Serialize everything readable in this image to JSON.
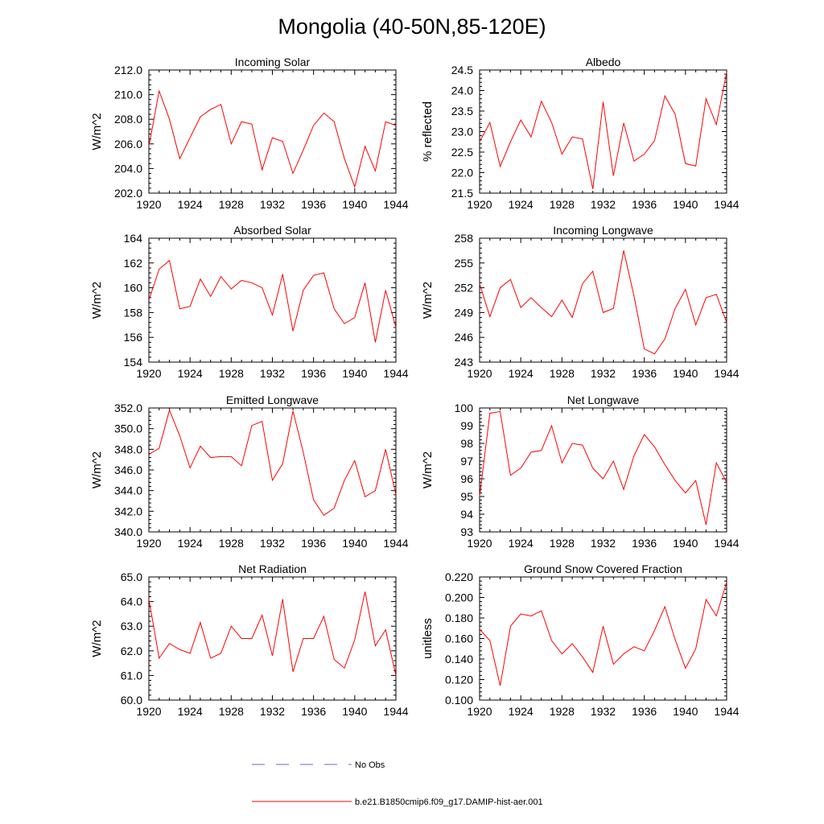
{
  "title": "Mongolia (40-50N,85-120E)",
  "legend": {
    "obs_label": "No Obs",
    "obs_color": "#6a6ad0",
    "model_label": "b.e21.B1850cmip6.f09_g17.DAMIP-hist-aer.001",
    "model_color": "#ff0000"
  },
  "chart_data": [
    {
      "type": "line",
      "title": "Incoming Solar",
      "ylabel": "W/m^2",
      "xlim": [
        1920,
        1944
      ],
      "ylim": [
        202,
        212
      ],
      "xticks": [
        "1920",
        "1924",
        "1928",
        "1932",
        "1936",
        "1940",
        "1944"
      ],
      "yticks": [
        "202.0",
        "204.0",
        "206.0",
        "208.0",
        "210.0",
        "212.0"
      ],
      "x": [
        1920,
        1921,
        1922,
        1923,
        1924,
        1925,
        1926,
        1927,
        1928,
        1929,
        1930,
        1931,
        1932,
        1933,
        1934,
        1935,
        1936,
        1937,
        1938,
        1939,
        1940,
        1941,
        1942,
        1943,
        1944
      ],
      "series": [
        {
          "values": [
            205.8,
            210.3,
            208.0,
            204.8,
            206.5,
            208.2,
            208.8,
            209.2,
            206.0,
            207.8,
            207.6,
            203.9,
            206.5,
            206.2,
            203.6,
            205.5,
            207.5,
            208.5,
            207.8,
            204.8,
            202.5,
            205.8,
            203.8,
            207.8,
            207.5
          ]
        }
      ]
    },
    {
      "type": "line",
      "title": "Albedo",
      "ylabel": "% reflected",
      "xlim": [
        1920,
        1944
      ],
      "ylim": [
        21.5,
        24.5
      ],
      "xticks": [
        "1920",
        "1924",
        "1928",
        "1932",
        "1936",
        "1940",
        "1944"
      ],
      "yticks": [
        "21.5",
        "22.0",
        "22.5",
        "23.0",
        "23.5",
        "24.0",
        "24.5"
      ],
      "x": [
        1920,
        1921,
        1922,
        1923,
        1924,
        1925,
        1926,
        1927,
        1928,
        1929,
        1930,
        1931,
        1932,
        1933,
        1934,
        1935,
        1936,
        1937,
        1938,
        1939,
        1940,
        1941,
        1942,
        1943,
        1944
      ],
      "series": [
        {
          "values": [
            22.75,
            23.22,
            22.15,
            22.75,
            23.28,
            22.87,
            23.74,
            23.22,
            22.45,
            22.87,
            22.82,
            21.6,
            23.72,
            21.92,
            23.21,
            22.28,
            22.45,
            22.78,
            23.87,
            23.42,
            22.22,
            22.16,
            23.8,
            23.17,
            24.45
          ]
        }
      ]
    },
    {
      "type": "line",
      "title": "Absorbed Solar",
      "ylabel": "W/m^2",
      "xlim": [
        1920,
        1944
      ],
      "ylim": [
        154,
        164
      ],
      "xticks": [
        "1920",
        "1924",
        "1928",
        "1932",
        "1936",
        "1940",
        "1944"
      ],
      "yticks": [
        "154",
        "156",
        "158",
        "160",
        "162",
        "164"
      ],
      "x": [
        1920,
        1921,
        1922,
        1923,
        1924,
        1925,
        1926,
        1927,
        1928,
        1929,
        1930,
        1931,
        1932,
        1933,
        1934,
        1935,
        1936,
        1937,
        1938,
        1939,
        1940,
        1941,
        1942,
        1943,
        1944
      ],
      "series": [
        {
          "values": [
            159.0,
            161.5,
            162.2,
            158.3,
            158.5,
            160.7,
            159.3,
            160.9,
            159.9,
            160.6,
            160.4,
            160.0,
            157.8,
            161.1,
            156.5,
            159.8,
            161.0,
            161.2,
            158.3,
            157.1,
            157.6,
            160.4,
            155.6,
            159.8,
            156.8
          ]
        }
      ]
    },
    {
      "type": "line",
      "title": "Incoming Longwave",
      "ylabel": "W/m^2",
      "xlim": [
        1920,
        1944
      ],
      "ylim": [
        243,
        258
      ],
      "xticks": [
        "1920",
        "1924",
        "1928",
        "1932",
        "1936",
        "1940",
        "1944"
      ],
      "yticks": [
        "243",
        "246",
        "249",
        "252",
        "255",
        "258"
      ],
      "x": [
        1920,
        1921,
        1922,
        1923,
        1924,
        1925,
        1926,
        1927,
        1928,
        1929,
        1930,
        1931,
        1932,
        1933,
        1934,
        1935,
        1936,
        1937,
        1938,
        1939,
        1940,
        1941,
        1942,
        1943,
        1944
      ],
      "series": [
        {
          "values": [
            252.5,
            248.5,
            252.0,
            253.0,
            249.6,
            250.8,
            249.6,
            248.5,
            250.5,
            248.4,
            252.5,
            254.0,
            249.0,
            249.5,
            256.5,
            251.0,
            244.6,
            244.0,
            245.8,
            249.5,
            251.8,
            247.5,
            250.8,
            251.2,
            247.8
          ]
        }
      ]
    },
    {
      "type": "line",
      "title": "Emitted Longwave",
      "ylabel": "W/m^2",
      "xlim": [
        1920,
        1944
      ],
      "ylim": [
        340,
        352
      ],
      "xticks": [
        "1920",
        "1924",
        "1928",
        "1932",
        "1936",
        "1940",
        "1944"
      ],
      "yticks": [
        "340.0",
        "342.0",
        "344.0",
        "346.0",
        "348.0",
        "350.0",
        "352.0"
      ],
      "x": [
        1920,
        1921,
        1922,
        1923,
        1924,
        1925,
        1926,
        1927,
        1928,
        1929,
        1930,
        1931,
        1932,
        1933,
        1934,
        1935,
        1936,
        1937,
        1938,
        1939,
        1940,
        1941,
        1942,
        1943,
        1944
      ],
      "series": [
        {
          "values": [
            347.5,
            348.1,
            351.8,
            349.3,
            346.2,
            348.3,
            347.2,
            347.3,
            347.3,
            346.4,
            350.3,
            350.7,
            345.0,
            346.6,
            351.7,
            347.7,
            343.1,
            341.6,
            342.3,
            345.0,
            346.9,
            343.4,
            344.0,
            348.0,
            343.6
          ]
        }
      ]
    },
    {
      "type": "line",
      "title": "Net Longwave",
      "ylabel": "W/m^2",
      "xlim": [
        1920,
        1944
      ],
      "ylim": [
        93,
        100
      ],
      "xticks": [
        "1920",
        "1924",
        "1928",
        "1932",
        "1936",
        "1940",
        "1944"
      ],
      "yticks": [
        "93",
        "94",
        "95",
        "96",
        "97",
        "98",
        "99",
        "100"
      ],
      "x": [
        1920,
        1921,
        1922,
        1923,
        1924,
        1925,
        1926,
        1927,
        1928,
        1929,
        1930,
        1931,
        1932,
        1933,
        1934,
        1935,
        1936,
        1937,
        1938,
        1939,
        1940,
        1941,
        1942,
        1943,
        1944
      ],
      "series": [
        {
          "values": [
            95.0,
            99.7,
            99.8,
            96.2,
            96.6,
            97.5,
            97.6,
            99.0,
            96.9,
            98.0,
            97.9,
            96.6,
            96.0,
            97.0,
            95.4,
            97.3,
            98.5,
            97.8,
            96.8,
            95.9,
            95.2,
            95.9,
            93.4,
            96.9,
            95.8
          ]
        }
      ]
    },
    {
      "type": "line",
      "title": "Net Radiation",
      "ylabel": "W/m^2",
      "xlim": [
        1920,
        1944
      ],
      "ylim": [
        60,
        65
      ],
      "xticks": [
        "1920",
        "1924",
        "1928",
        "1932",
        "1936",
        "1940",
        "1944"
      ],
      "yticks": [
        "60.0",
        "61.0",
        "62.0",
        "63.0",
        "64.0",
        "65.0"
      ],
      "x": [
        1920,
        1921,
        1922,
        1923,
        1924,
        1925,
        1926,
        1927,
        1928,
        1929,
        1930,
        1931,
        1932,
        1933,
        1934,
        1935,
        1936,
        1937,
        1938,
        1939,
        1940,
        1941,
        1942,
        1943,
        1944
      ],
      "series": [
        {
          "values": [
            64.1,
            61.7,
            62.3,
            62.05,
            61.9,
            63.15,
            61.7,
            61.9,
            63.0,
            62.5,
            62.5,
            63.45,
            61.8,
            64.1,
            61.15,
            62.5,
            62.5,
            63.4,
            61.65,
            61.3,
            62.45,
            64.4,
            62.2,
            62.85,
            61.0
          ]
        }
      ]
    },
    {
      "type": "line",
      "title": "Ground Snow Covered Fraction",
      "ylabel": "unitless",
      "xlim": [
        1920,
        1944
      ],
      "ylim": [
        0.1,
        0.22
      ],
      "xticks": [
        "1920",
        "1924",
        "1928",
        "1932",
        "1936",
        "1940",
        "1944"
      ],
      "yticks": [
        "0.100",
        "0.120",
        "0.140",
        "0.160",
        "0.180",
        "0.200",
        "0.220"
      ],
      "x": [
        1920,
        1921,
        1922,
        1923,
        1924,
        1925,
        1926,
        1927,
        1928,
        1929,
        1930,
        1931,
        1932,
        1933,
        1934,
        1935,
        1936,
        1937,
        1938,
        1939,
        1940,
        1941,
        1942,
        1943,
        1944
      ],
      "series": [
        {
          "values": [
            0.169,
            0.158,
            0.114,
            0.172,
            0.184,
            0.182,
            0.187,
            0.158,
            0.145,
            0.155,
            0.142,
            0.127,
            0.172,
            0.135,
            0.145,
            0.152,
            0.148,
            0.168,
            0.191,
            0.159,
            0.131,
            0.15,
            0.198,
            0.182,
            0.215
          ]
        }
      ]
    }
  ]
}
